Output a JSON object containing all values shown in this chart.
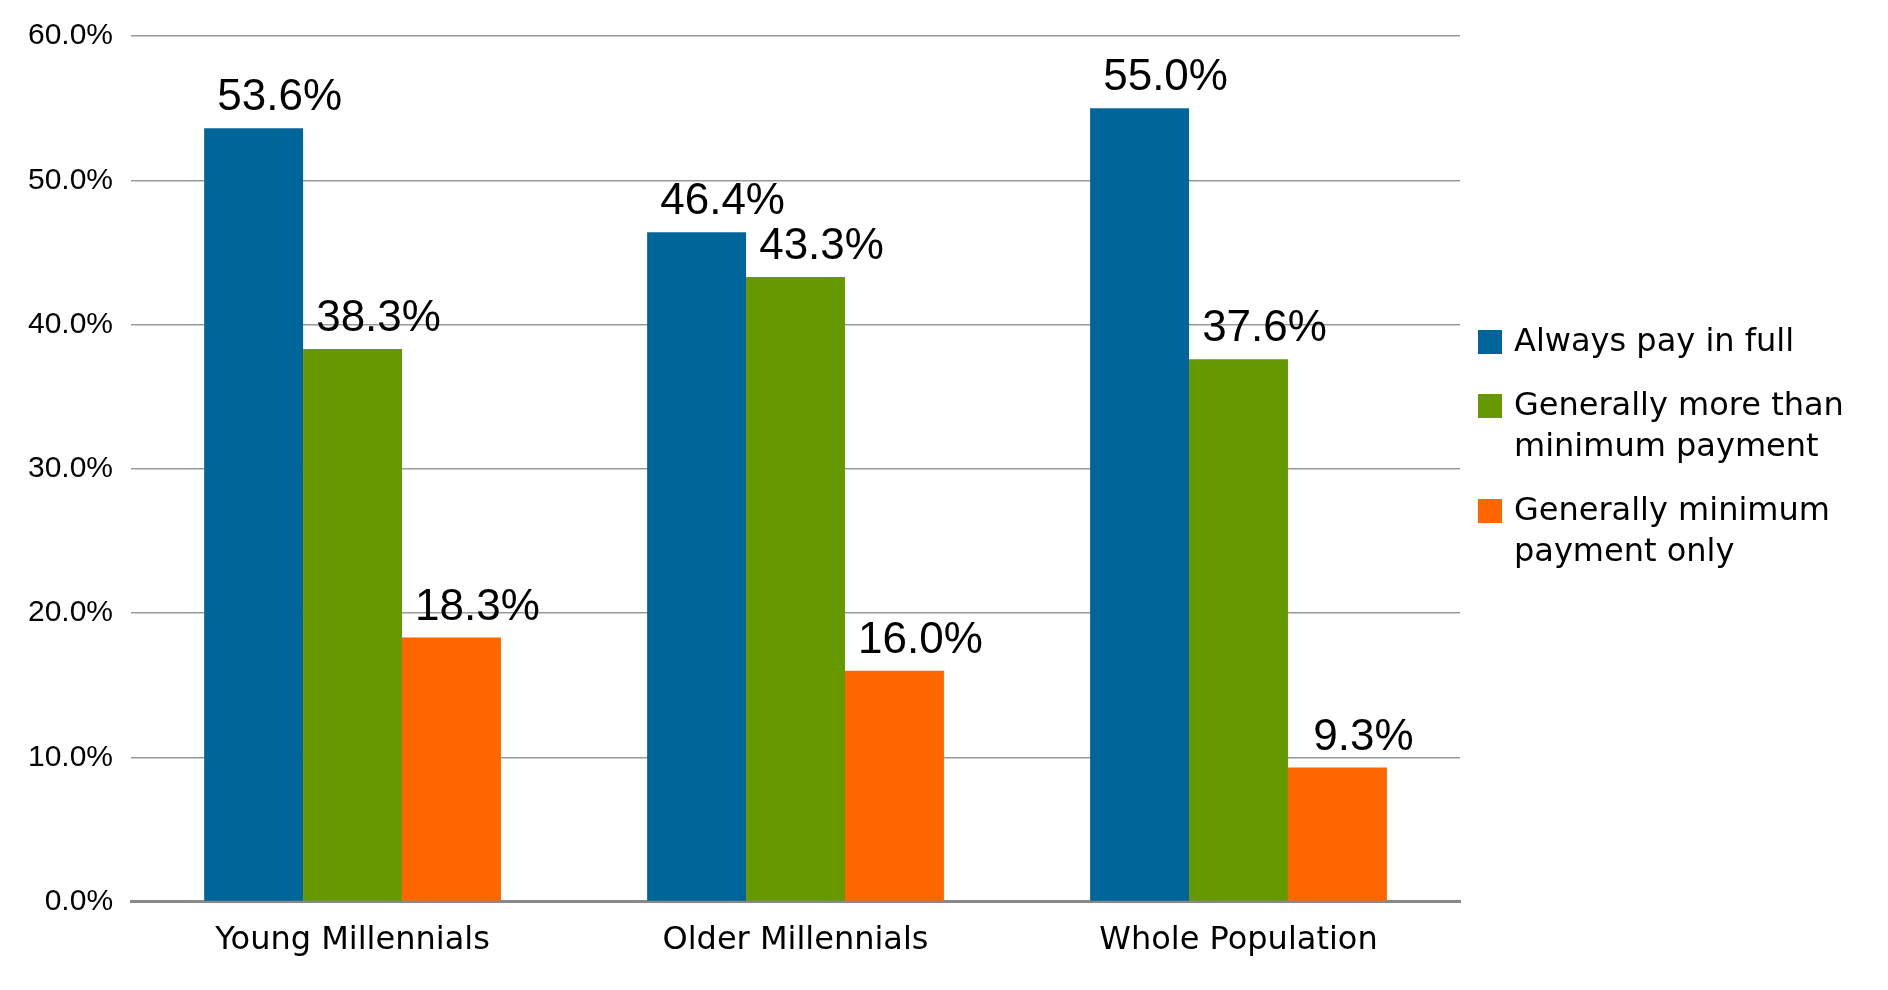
{
  "chart_data": {
    "type": "bar",
    "categories": [
      "Young Millennials",
      "Older Millennials",
      "Whole Population"
    ],
    "series": [
      {
        "name": "Always pay in full",
        "color": "#006699",
        "values": [
          53.6,
          46.4,
          55.0
        ],
        "value_labels": [
          "53.6%",
          "46.4%",
          "55.0%"
        ]
      },
      {
        "name": "Generally more than minimum payment",
        "color": "#669900",
        "values": [
          38.3,
          43.3,
          37.6
        ],
        "value_labels": [
          "38.3%",
          "43.3%",
          "37.6%"
        ]
      },
      {
        "name": "Generally minimum payment only",
        "color": "#ff6600",
        "values": [
          18.3,
          16.0,
          9.3
        ],
        "value_labels": [
          "18.3%",
          "16.0%",
          "9.3%"
        ]
      }
    ],
    "ylim": [
      0,
      60
    ],
    "yticks": [
      {
        "value": 0,
        "label": "0.0%"
      },
      {
        "value": 10,
        "label": "10.0%"
      },
      {
        "value": 20,
        "label": "20.0%"
      },
      {
        "value": 30,
        "label": "30.0%"
      },
      {
        "value": 40,
        "label": "40.0%"
      },
      {
        "value": 50,
        "label": "50.0%"
      },
      {
        "value": 60,
        "label": "60.0%"
      }
    ],
    "grid": "y",
    "legend": "right"
  }
}
